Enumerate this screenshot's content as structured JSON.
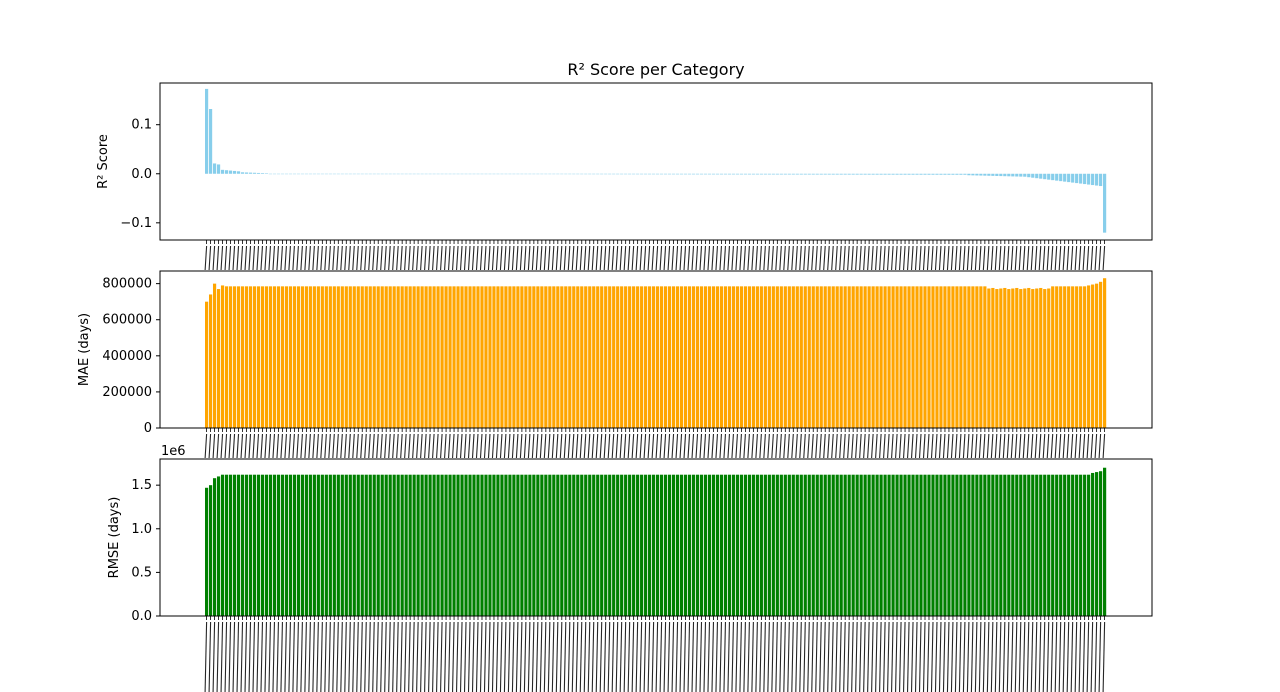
{
  "figure": {
    "title": "R² Score per Category",
    "colors": {
      "r2": "#87ceeb",
      "mae": "#ffa500",
      "rmse": "#008000",
      "axis": "#000000"
    }
  },
  "chart_data": [
    {
      "type": "bar",
      "title": "R² Score per Category",
      "ylabel": "R² Score",
      "xlabel": "",
      "ylim": [
        -0.135,
        0.185
      ],
      "yticks": [
        -0.1,
        0.0,
        0.1
      ],
      "ytick_labels": [
        "−0.1",
        "0.0",
        "0.1"
      ],
      "category_count": 226,
      "x_tick_labels_legible": false,
      "values_summary": {
        "profile": "sorted descending",
        "segments": [
          {
            "from": 0,
            "to": 0,
            "value": 0.173
          },
          {
            "from": 1,
            "to": 1,
            "value": 0.132
          },
          {
            "from": 2,
            "to": 2,
            "value": 0.021
          },
          {
            "from": 3,
            "to": 3,
            "value": 0.019
          },
          {
            "from": 4,
            "to": 8,
            "value_start": 0.008,
            "value_end": 0.005
          },
          {
            "from": 9,
            "to": 15,
            "value_start": 0.003,
            "value_end": 0.001
          },
          {
            "from": 16,
            "to": 190,
            "value_start": 0.0,
            "value_end": -0.002
          },
          {
            "from": 191,
            "to": 205,
            "value_start": -0.003,
            "value_end": -0.006
          },
          {
            "from": 206,
            "to": 224,
            "value_start": -0.007,
            "value_end": -0.025
          },
          {
            "from": 225,
            "to": 225,
            "value": -0.12
          }
        ]
      }
    },
    {
      "type": "bar",
      "ylabel": "MAE (days)",
      "xlabel": "",
      "ylim": [
        0,
        870000
      ],
      "yticks": [
        0,
        200000,
        400000,
        600000,
        800000
      ],
      "ytick_labels": [
        "0",
        "200000",
        "400000",
        "600000",
        "800000"
      ],
      "category_count": 226,
      "x_tick_labels_legible": false,
      "values_summary": {
        "first_values": [
          700000,
          740000,
          800000,
          770000,
          790000
        ],
        "typical_value": 785000,
        "dip_near_end": 770000,
        "last_values": [
          790000,
          795000,
          800000,
          810000,
          830000
        ]
      }
    },
    {
      "type": "bar",
      "ylabel": "RMSE (days)",
      "xlabel": "",
      "ylim": [
        0,
        1800000
      ],
      "yticks": [
        0,
        500000,
        1000000,
        1500000
      ],
      "ytick_labels": [
        "0.0",
        "0.5",
        "1.0",
        "1.5"
      ],
      "offset_label": "1e6",
      "category_count": 226,
      "x_tick_labels_legible": false,
      "values_summary": {
        "first_values": [
          1470000,
          1500000,
          1580000,
          1600000
        ],
        "typical_value": 1620000,
        "last_values": [
          1640000,
          1650000,
          1660000,
          1700000
        ]
      }
    }
  ]
}
